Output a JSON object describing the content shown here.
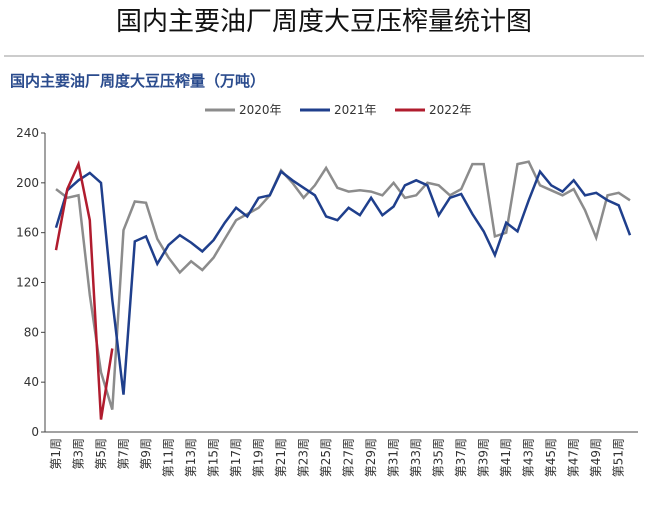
{
  "page_title": "国内主要油厂周度大豆压榨量统计图",
  "chart_data": {
    "type": "line",
    "title": "国内主要油厂周度大豆压榨量（万吨）",
    "categories": [
      "第1周",
      null,
      "第3周",
      null,
      "第5周",
      null,
      "第7周",
      null,
      "第9周",
      null,
      "第11周",
      null,
      "第13周",
      null,
      "第15周",
      null,
      "第17周",
      null,
      "第19周",
      null,
      "第21周",
      null,
      "第23周",
      null,
      "第25周",
      null,
      "第27周",
      null,
      "第29周",
      null,
      "第31周",
      null,
      "第33周",
      null,
      "第35周",
      null,
      "第37周",
      null,
      "第39周",
      null,
      "第41周",
      null,
      "第43周",
      null,
      "第45周",
      null,
      "第47周",
      null,
      "第49周",
      null,
      "第51周",
      null
    ],
    "series": [
      {
        "name": "2020年",
        "color": "#8c8c8c",
        "values": [
          195,
          188,
          190,
          110,
          48,
          18,
          162,
          185,
          184,
          155,
          140,
          128,
          137,
          130,
          140,
          155,
          170,
          175,
          180,
          190,
          210,
          200,
          188,
          198,
          212,
          196,
          193,
          194,
          193,
          190,
          200,
          188,
          190,
          200,
          198,
          190,
          195,
          215,
          215,
          157,
          160,
          215,
          217,
          198,
          194,
          190,
          195,
          178,
          156,
          190,
          192,
          186
        ]
      },
      {
        "name": "2021年",
        "color": "#1f3f8c",
        "values": [
          164,
          194,
          202,
          208,
          200,
          106,
          30,
          153,
          157,
          135,
          150,
          158,
          152,
          145,
          154,
          168,
          180,
          173,
          188,
          190,
          209,
          202,
          196,
          190,
          173,
          170,
          180,
          174,
          188,
          174,
          181,
          198,
          202,
          198,
          174,
          188,
          191,
          175,
          161,
          142,
          168,
          161,
          186,
          209,
          198,
          193,
          202,
          190,
          192,
          186,
          182,
          158
        ]
      },
      {
        "name": "2022年",
        "color": "#b01c2e",
        "values": [
          146,
          195,
          215,
          170,
          10,
          67,
          null,
          null,
          null,
          null,
          null,
          null,
          null,
          null,
          null,
          null,
          null,
          null,
          null,
          null,
          null,
          null,
          null,
          null,
          null,
          null,
          null,
          null,
          null,
          null,
          null,
          null,
          null,
          null,
          null,
          null,
          null,
          null,
          null,
          null,
          null,
          null,
          null,
          null,
          null,
          null,
          null,
          null,
          null,
          null,
          null,
          null
        ]
      }
    ],
    "ylim": [
      0,
      240
    ],
    "yticks": [
      0,
      40,
      80,
      120,
      160,
      200,
      240
    ]
  }
}
